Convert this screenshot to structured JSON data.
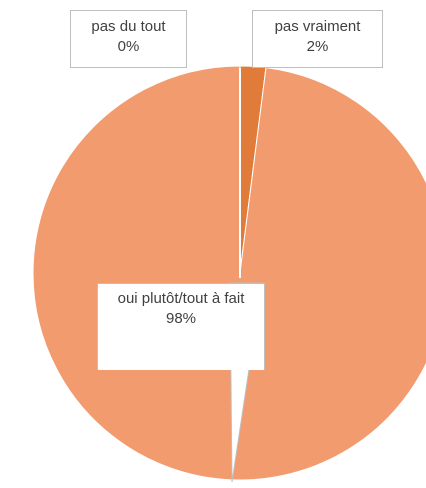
{
  "chart_data": {
    "type": "pie",
    "categories": [
      "pas du tout",
      "pas vraiment",
      "oui plutôt/tout à fait"
    ],
    "values": [
      0,
      2,
      98
    ],
    "value_labels": [
      "0%",
      "2%",
      "98%"
    ],
    "colors": [
      "#c55a11",
      "#e07b39",
      "#f19b6f"
    ]
  }
}
